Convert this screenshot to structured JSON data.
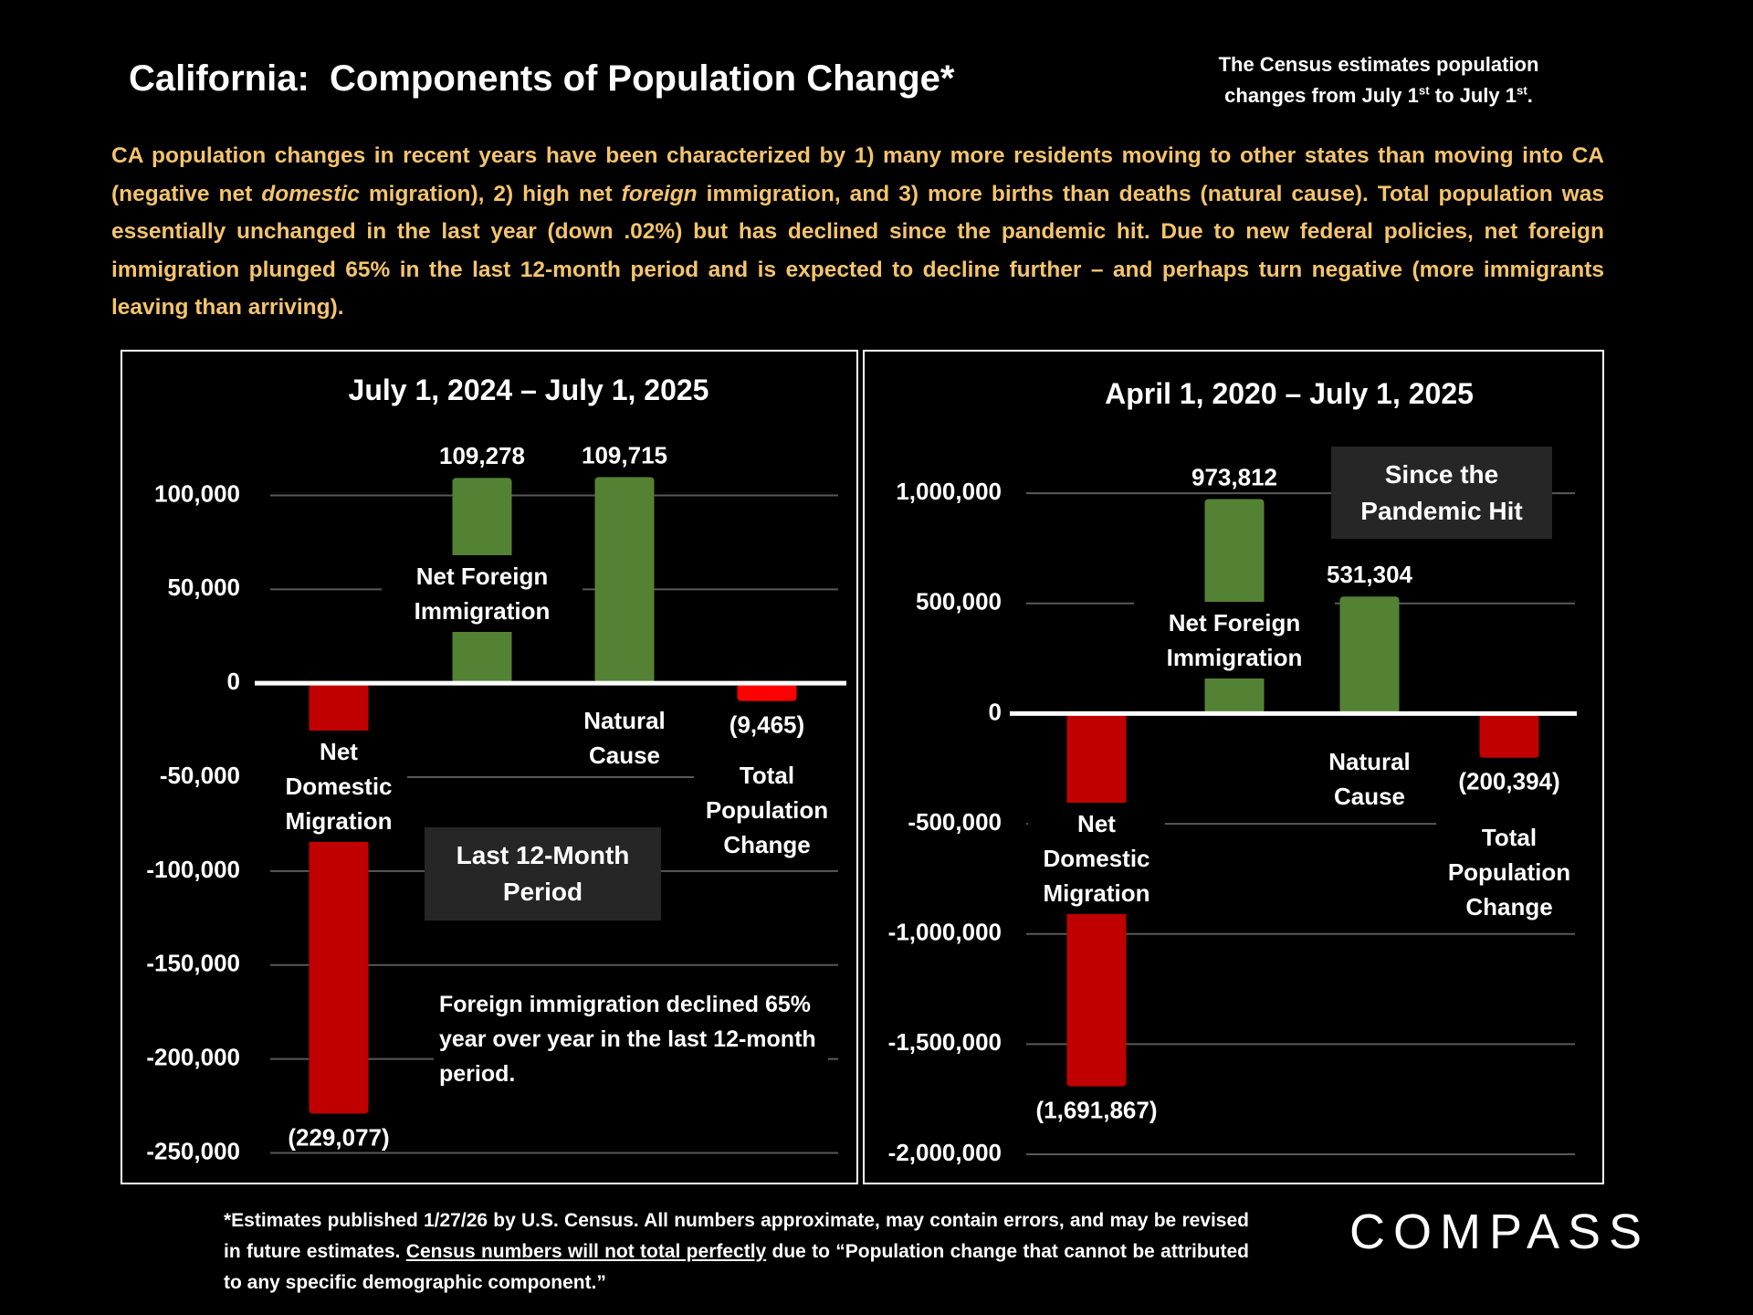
{
  "header": {
    "title": "California:  Components of Population Change*",
    "census_note": [
      {
        "text": "The Census estimates population changes from July 1"
      },
      {
        "text": "st",
        "superscript": true
      },
      {
        "text": " to July 1"
      },
      {
        "text": "st",
        "superscript": true
      },
      {
        "text": "."
      }
    ]
  },
  "intro": [
    {
      "text": "CA population changes in recent years have been characterized by 1) many more residents moving to other states than moving into CA (negative net "
    },
    {
      "text": "domestic",
      "italic": true
    },
    {
      "text": " migration), 2) high net "
    },
    {
      "text": "foreign",
      "italic": true
    },
    {
      "text": " immigration, and 3) more births than deaths (natural cause). Total population was essentially unchanged in the last year (down .02%) but has declined since the pandemic hit. Due to new federal policies, net foreign immigration plunged 65% in the last 12-month period and is expected to decline further – and perhaps turn negative (more immigrants leaving than arriving)."
    }
  ],
  "chart_data": [
    {
      "type": "bar",
      "title": "July 1, 2024 – July 1, 2025",
      "categories": [
        "Net Domestic Migration",
        "Net Foreign Immigration",
        "Natural Cause",
        "Total Population Change"
      ],
      "values": [
        -229077,
        109278,
        109715,
        -9465
      ],
      "value_labels": [
        "(229,077)",
        "109,278",
        "109,715",
        "(9,465)"
      ],
      "colors": [
        "#c00000",
        "#548235",
        "#548235",
        "#ff0000"
      ],
      "ylim": [
        -250000,
        115000
      ],
      "yticks": [
        {
          "value": 100000,
          "label": "100,000"
        },
        {
          "value": 50000,
          "label": "50,000"
        },
        0,
        {
          "value": -50000,
          "label": "-50,000"
        },
        {
          "value": -100000,
          "label": "-100,000"
        },
        {
          "value": -150000,
          "label": "-150,000"
        },
        {
          "value": -200000,
          "label": "-200,000"
        },
        {
          "value": -250000,
          "label": "-250,000"
        }
      ],
      "grid": true,
      "annotations": [
        "Last 12-Month Period",
        "Foreign immigration declined 65% year over year in the last 12-month period."
      ]
    },
    {
      "type": "bar",
      "title": "April 1, 2020 – July 1, 2025",
      "categories": [
        "Net Domestic Migration",
        "Net Foreign Immigration",
        "Natural Cause",
        "Total Population Change"
      ],
      "values": [
        -1691867,
        973812,
        531304,
        -200394
      ],
      "value_labels": [
        "(1,691,867)",
        "973,812",
        "531,304",
        "(200,394)"
      ],
      "colors": [
        "#c00000",
        "#548235",
        "#548235",
        "#c00000"
      ],
      "ylim": [
        -2000000,
        1100000
      ],
      "yticks": [
        {
          "value": 1000000,
          "label": "1,000,000"
        },
        {
          "value": 500000,
          "label": "500,000"
        },
        0,
        {
          "value": -500000,
          "label": "-500,000"
        },
        {
          "value": -1000000,
          "label": "-1,000,000"
        },
        {
          "value": -1500000,
          "label": "-1,500,000"
        },
        {
          "value": -2000000,
          "label": "-2,000,000"
        }
      ],
      "grid": true,
      "annotations": [
        "Since the Pandemic Hit"
      ]
    }
  ],
  "footnote": [
    {
      "text": "*Estimates published 1/27/26 by U.S. Census. All numbers approximate, may contain errors, and may be revised in future estimates. "
    },
    {
      "text": "Census numbers will not total perfectly",
      "underline": true
    },
    {
      "text": " due to “Population change that cannot be attributed to any specific demographic component.”"
    }
  ],
  "logo": "COMPASS"
}
